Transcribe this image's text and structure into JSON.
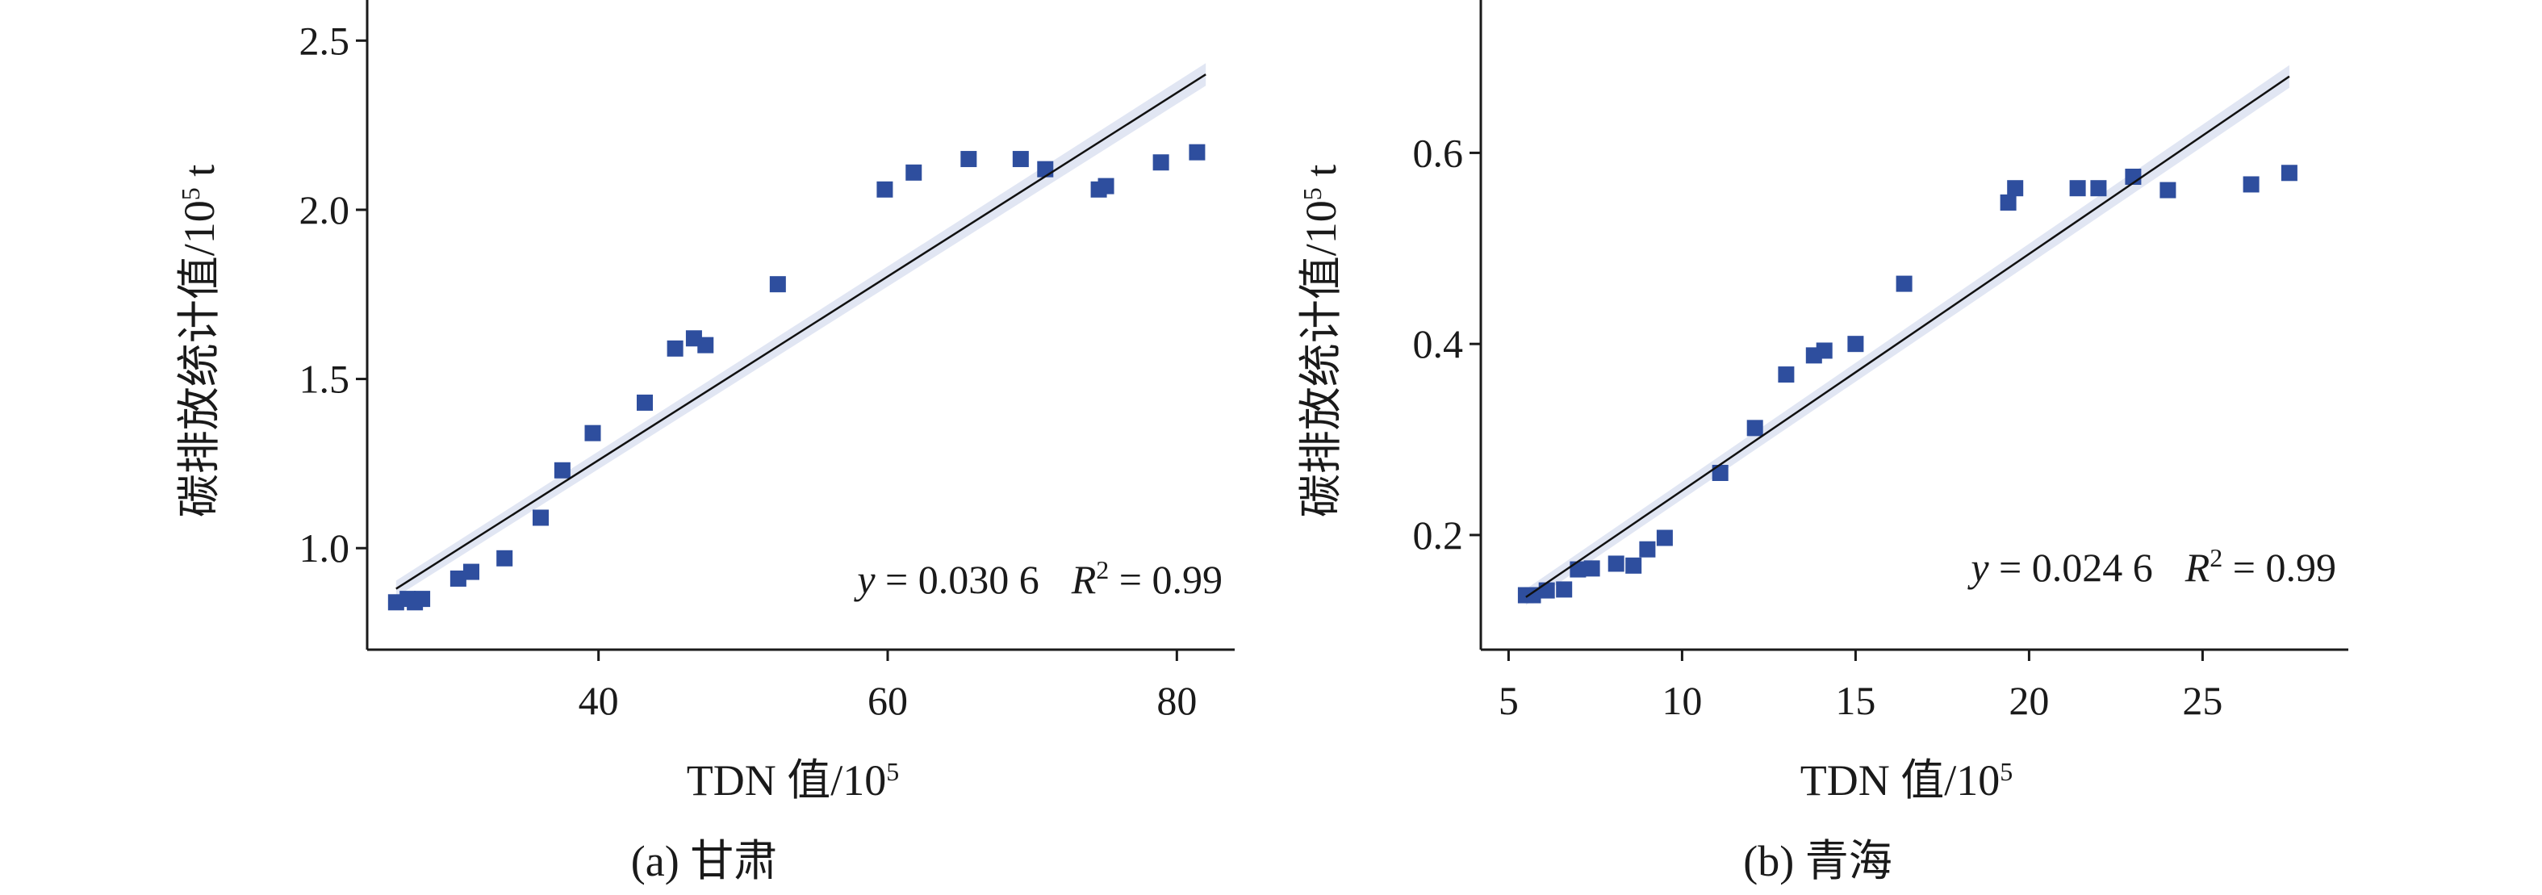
{
  "chart_data": [
    {
      "type": "scatter",
      "caption": "(a) 甘肃",
      "xlabel_main": "TDN 值/10",
      "xlabel_sup": "5",
      "ylabel_main": "碳排放统计值/10",
      "ylabel_sup": "5",
      "ylabel_unit": " t",
      "equation_lhs": "y",
      "equation_rhs": " = 0.030 6",
      "r2_symbol": "R",
      "r2_sup": "2",
      "r2_value": " = 0.99",
      "xlim": [
        24,
        84
      ],
      "ylim": [
        0.7,
        2.62
      ],
      "xticks": [
        40,
        60,
        80
      ],
      "yticks": [
        1.0,
        1.5,
        2.0,
        2.5
      ],
      "ytick_labels": [
        "1.0",
        "1.5",
        "2.0",
        "2.5"
      ],
      "fit_slope": 0.0306,
      "fit_line": {
        "x": [
          26,
          82
        ],
        "y": [
          0.88,
          2.4
        ]
      },
      "point_color": "#2e4e9e",
      "points": [
        {
          "x": 26,
          "y": 0.84
        },
        {
          "x": 26.8,
          "y": 0.85
        },
        {
          "x": 27.3,
          "y": 0.84
        },
        {
          "x": 27.8,
          "y": 0.85
        },
        {
          "x": 30.3,
          "y": 0.91
        },
        {
          "x": 31.2,
          "y": 0.93
        },
        {
          "x": 33.5,
          "y": 0.97
        },
        {
          "x": 36,
          "y": 1.09
        },
        {
          "x": 37.5,
          "y": 1.23
        },
        {
          "x": 39.6,
          "y": 1.34
        },
        {
          "x": 43.2,
          "y": 1.43
        },
        {
          "x": 45.3,
          "y": 1.59
        },
        {
          "x": 46.6,
          "y": 1.62
        },
        {
          "x": 47.4,
          "y": 1.6
        },
        {
          "x": 52.4,
          "y": 1.78
        },
        {
          "x": 59.8,
          "y": 2.06
        },
        {
          "x": 61.8,
          "y": 2.11
        },
        {
          "x": 65.6,
          "y": 2.15
        },
        {
          "x": 69.2,
          "y": 2.15
        },
        {
          "x": 70.9,
          "y": 2.12
        },
        {
          "x": 74.6,
          "y": 2.06
        },
        {
          "x": 75.1,
          "y": 2.07
        },
        {
          "x": 78.9,
          "y": 2.14
        },
        {
          "x": 81.4,
          "y": 2.17
        }
      ]
    },
    {
      "type": "scatter",
      "caption": "(b) 青海",
      "xlabel_main": "TDN 值/10",
      "xlabel_sup": "5",
      "ylabel_main": "碳排放统计值/10",
      "ylabel_sup": "5",
      "ylabel_unit": " t",
      "equation_lhs": "y",
      "equation_rhs": " = 0.024 6",
      "r2_symbol": "R",
      "r2_sup": "2",
      "r2_value": " = 0.99",
      "xlim": [
        4.2,
        29.2
      ],
      "ylim": [
        0.08,
        0.76
      ],
      "xticks": [
        5,
        10,
        15,
        20,
        25
      ],
      "yticks": [
        0.2,
        0.4,
        0.6
      ],
      "ytick_labels": [
        "0.2",
        "0.4",
        "0.6"
      ],
      "fit_slope": 0.0246,
      "fit_line": {
        "x": [
          5.5,
          27.5
        ],
        "y": [
          0.135,
          0.68
        ]
      },
      "point_color": "#2e4e9e",
      "points": [
        {
          "x": 5.5,
          "y": 0.137
        },
        {
          "x": 5.7,
          "y": 0.137
        },
        {
          "x": 6.1,
          "y": 0.142
        },
        {
          "x": 6.6,
          "y": 0.143
        },
        {
          "x": 7.0,
          "y": 0.164
        },
        {
          "x": 7.4,
          "y": 0.165
        },
        {
          "x": 8.1,
          "y": 0.17
        },
        {
          "x": 8.6,
          "y": 0.168
        },
        {
          "x": 9.0,
          "y": 0.185
        },
        {
          "x": 9.5,
          "y": 0.197
        },
        {
          "x": 11.1,
          "y": 0.265
        },
        {
          "x": 12.1,
          "y": 0.312
        },
        {
          "x": 13.0,
          "y": 0.368
        },
        {
          "x": 13.8,
          "y": 0.388
        },
        {
          "x": 14.1,
          "y": 0.393
        },
        {
          "x": 15.0,
          "y": 0.4
        },
        {
          "x": 16.4,
          "y": 0.463
        },
        {
          "x": 19.4,
          "y": 0.548
        },
        {
          "x": 19.6,
          "y": 0.563
        },
        {
          "x": 21.4,
          "y": 0.563
        },
        {
          "x": 22.0,
          "y": 0.563
        },
        {
          "x": 23.0,
          "y": 0.575
        },
        {
          "x": 24.0,
          "y": 0.561
        },
        {
          "x": 26.4,
          "y": 0.567
        },
        {
          "x": 27.5,
          "y": 0.579
        }
      ]
    }
  ]
}
